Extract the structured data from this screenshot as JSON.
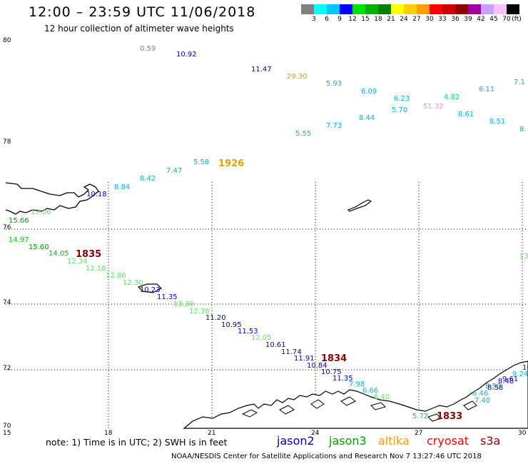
{
  "header": {
    "title": "12:00 – 23:59 UTC 11/06/2018",
    "subtitle": "12 hour collection of altimeter wave heights"
  },
  "colorbar": {
    "colors": [
      "#808080",
      "#00ffff",
      "#00c8ff",
      "#0000ff",
      "#00e000",
      "#00b000",
      "#008000",
      "#ffff00",
      "#ffd000",
      "#ffa000",
      "#ff0000",
      "#d00000",
      "#900000",
      "#a000a0",
      "#c8a0ff",
      "#ffc0ff",
      "#000000"
    ],
    "labels": [
      "3",
      "6",
      "9",
      "12",
      "15",
      "18",
      "21",
      "24",
      "27",
      "30",
      "33",
      "36",
      "39",
      "42",
      "45",
      "70",
      "(ft)"
    ]
  },
  "axes": {
    "lat_labels": [
      "80",
      "78",
      "76",
      "74",
      "72",
      "70"
    ],
    "lon_labels": [
      "15",
      "18",
      "21",
      "24",
      "27",
      "30"
    ]
  },
  "satellite_colors": {
    "jason2": "#0000c8",
    "jason3": "#00a000",
    "altika": "#ff9900",
    "cryosat": "#ff0000",
    "s3a": "#900000"
  },
  "measurements": [
    {
      "v": "0.59",
      "c": "#808080"
    },
    {
      "v": "10.92",
      "c": "#0000c8"
    },
    {
      "v": "11.47",
      "c": "#0000c8"
    },
    {
      "v": "29.30",
      "c": "#e6a000"
    },
    {
      "v": "5.93",
      "c": "#00b4e6"
    },
    {
      "v": "6.09",
      "c": "#00b4e6"
    },
    {
      "v": "6.23",
      "c": "#00b4e6"
    },
    {
      "v": "4.82",
      "c": "#00e070"
    },
    {
      "v": "6.11",
      "c": "#00b4e6"
    },
    {
      "v": "7.1",
      "c": "#00b4e6"
    },
    {
      "v": "5.70",
      "c": "#00b4e6"
    },
    {
      "v": "51.32",
      "c": "#ff80ff"
    },
    {
      "v": "8.61",
      "c": "#00b4e6"
    },
    {
      "v": "8.44",
      "c": "#00b4e6"
    },
    {
      "v": "8.51",
      "c": "#00b4e6"
    },
    {
      "v": "7.73",
      "c": "#00b4e6"
    },
    {
      "v": "5.55",
      "c": "#00b4e6"
    },
    {
      "v": "8.",
      "c": "#00b4e6"
    },
    {
      "v": "5.58",
      "c": "#00b4e6"
    },
    {
      "v": "7.47",
      "c": "#00b4e6"
    },
    {
      "v": "8.42",
      "c": "#00b4e6"
    },
    {
      "v": "8.84",
      "c": "#00b4e6"
    },
    {
      "v": "10.18",
      "c": "#0000c8"
    },
    {
      "v": "13.06",
      "c": "#66e066"
    },
    {
      "v": "15.66",
      "c": "#00a000"
    },
    {
      "v": "14.97",
      "c": "#00c800"
    },
    {
      "v": "15.60",
      "c": "#00a000"
    },
    {
      "v": "14.05",
      "c": "#00c800"
    },
    {
      "v": "12.34",
      "c": "#66e066"
    },
    {
      "v": "12.18",
      "c": "#66e066"
    },
    {
      "v": "12.80",
      "c": "#66e066"
    },
    {
      "v": "12.30",
      "c": "#66e066"
    },
    {
      "v": "10.23",
      "c": "#0000c8"
    },
    {
      "v": "11.35",
      "c": "#0000c8"
    },
    {
      "v": "13.30",
      "c": "#66e066"
    },
    {
      "v": "12.38",
      "c": "#66e066"
    },
    {
      "v": "11.20",
      "c": "#0000c8"
    },
    {
      "v": "10.95",
      "c": "#0000c8"
    },
    {
      "v": "11.53",
      "c": "#0000c8"
    },
    {
      "v": "12.05",
      "c": "#66e066"
    },
    {
      "v": "10.61",
      "c": "#0000c8"
    },
    {
      "v": "11.74",
      "c": "#0000c8"
    },
    {
      "v": "11.91",
      "c": "#0000c8"
    },
    {
      "v": "10.84",
      "c": "#0000c8"
    },
    {
      "v": "10.75",
      "c": "#0000c8"
    },
    {
      "v": "11.35",
      "c": "#0000c8"
    },
    {
      "v": "7.98",
      "c": "#00b4e6"
    },
    {
      "v": "6.66",
      "c": "#00b4e6"
    },
    {
      "v": "6.40",
      "c": "#66e066"
    },
    {
      "v": "5.72",
      "c": "#00b4e6"
    },
    {
      "v": "6.46",
      "c": "#00b4e6"
    },
    {
      "v": "7.40",
      "c": "#00b4e6"
    },
    {
      "v": "8.50",
      "c": "#00b4e6"
    },
    {
      "v": "8.58",
      "c": "#0000c8"
    },
    {
      "v": "8.48",
      "c": "#0000c8"
    },
    {
      "v": "9.61",
      "c": "#0000c8"
    },
    {
      "v": "9.24",
      "c": "#00b4e6"
    },
    {
      "v": "10",
      "c": "#0000c8"
    },
    {
      "v": "13",
      "c": "#66e066"
    }
  ],
  "pass_times": [
    {
      "t": "1926",
      "c": "#e6a000"
    },
    {
      "t": "1835",
      "c": "#900000"
    },
    {
      "t": "1834",
      "c": "#900000"
    },
    {
      "t": "1833",
      "c": "#900000"
    }
  ],
  "footer": {
    "note": "note: 1) Time is in UTC; 2) SWH is in feet",
    "satellites": [
      "jason2",
      "jason3",
      "altika",
      "cryosat",
      "s3a"
    ],
    "credit": "NOAA/NESDIS Center for Satellite Applications and Research   Nov  7 13:27:46 UTC 2018"
  }
}
